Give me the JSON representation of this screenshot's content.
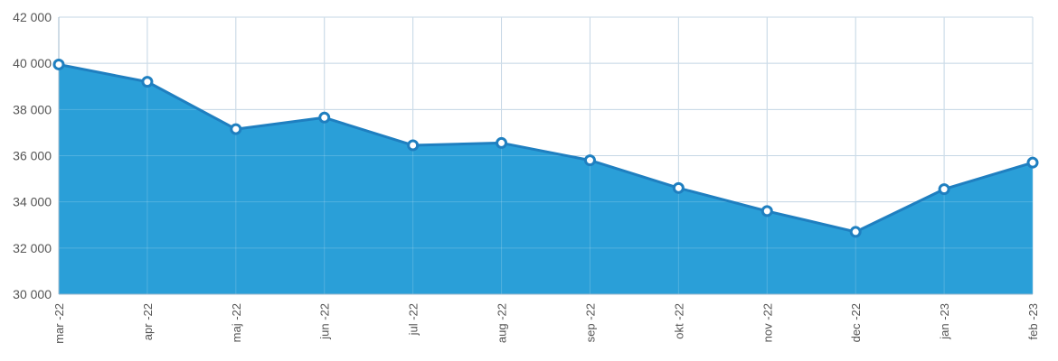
{
  "chart_data": {
    "type": "area",
    "title": "",
    "xlabel": "",
    "ylabel": "",
    "categories": [
      "mar -22",
      "apr -22",
      "maj -22",
      "jun -22",
      "jul -22",
      "aug -22",
      "sep -22",
      "okt -22",
      "nov -22",
      "dec -22",
      "jan -23",
      "feb -23"
    ],
    "values": [
      39950,
      39200,
      37150,
      37650,
      36450,
      36550,
      35800,
      34600,
      33600,
      32700,
      34550,
      35700
    ],
    "ylim": [
      30000,
      42000
    ],
    "yticks": [
      30000,
      32000,
      34000,
      36000,
      38000,
      40000,
      42000
    ],
    "ytick_labels": [
      "30 000",
      "32 000",
      "34 000",
      "36 000",
      "38 000",
      "40 000",
      "42 000"
    ],
    "grid": true,
    "legend": "none",
    "colors": {
      "fill": "#2a9fd8",
      "line": "#1f7fc0",
      "marker_fill": "#ffffff",
      "marker_stroke": "#1f7fc0",
      "grid": "#b9cfe0"
    }
  }
}
